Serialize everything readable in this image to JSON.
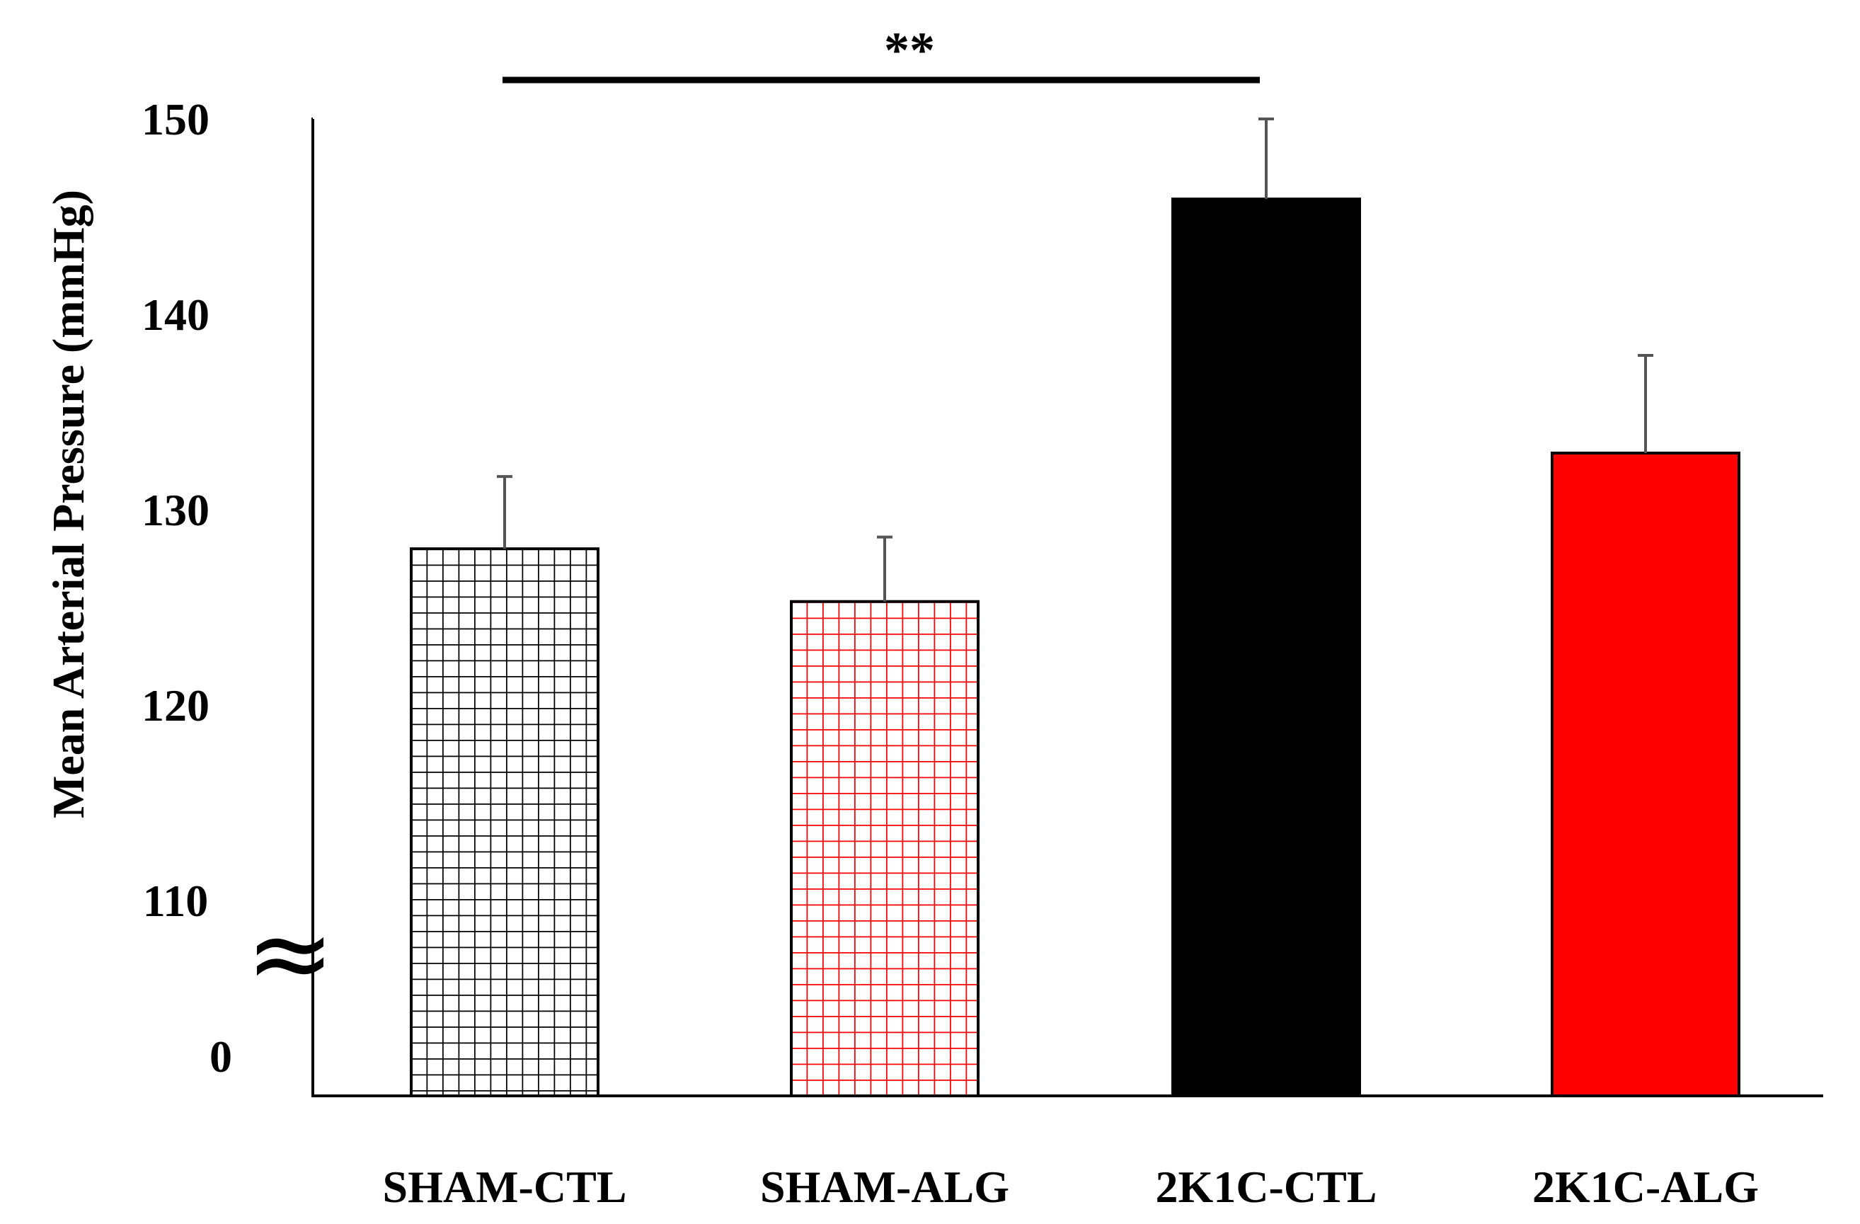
{
  "chart_data": {
    "type": "bar",
    "ylabel": "Mean Arterial Pressure (mmHg)",
    "xlabel": "",
    "title": "",
    "axis_break": true,
    "axis_break_symbol": "≈",
    "ylim": [
      100,
      150
    ],
    "yticks": [
      150,
      140,
      130,
      120,
      110
    ],
    "ytick_labels": [
      "150",
      "140",
      "130",
      "120",
      "110"
    ],
    "baseline_label": "0",
    "categories": [
      "SHAM-CTL",
      "SHAM-ALG",
      "2K1C-CTL",
      "2K1C-ALG"
    ],
    "values": [
      128,
      125.3,
      145.9,
      132.9
    ],
    "errors": [
      3.7,
      3.3,
      4.1,
      5.0
    ],
    "bar_styles": [
      {
        "fill": "grid",
        "color": "#000000"
      },
      {
        "fill": "grid",
        "color": "#ff0000"
      },
      {
        "fill": "solid",
        "color": "#000000"
      },
      {
        "fill": "solid",
        "color": "#ff0000"
      }
    ],
    "significance": [
      {
        "from": "SHAM-CTL",
        "to": "2K1C-CTL",
        "label": "**"
      }
    ]
  }
}
